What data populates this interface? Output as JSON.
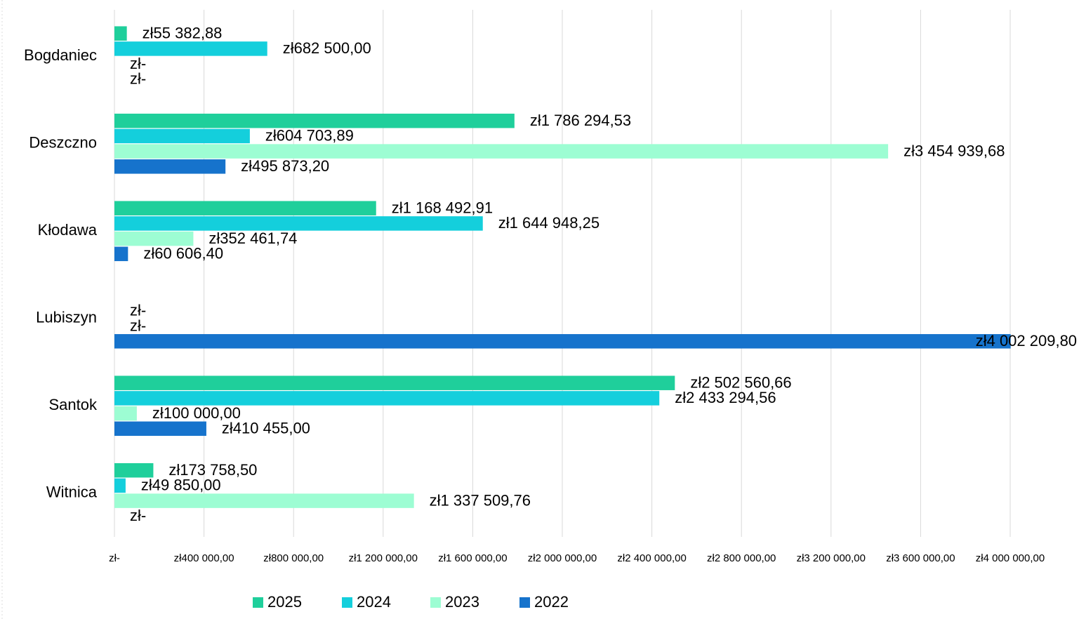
{
  "chart_data": {
    "type": "bar",
    "orientation": "horizontal",
    "categories": [
      "Bogdaniec",
      "Deszczno",
      "Kłodawa",
      "Lubiszyn",
      "Santok",
      "Witnica"
    ],
    "series": [
      {
        "name": "2025",
        "color": "#1fcf9b",
        "values": [
          55382.88,
          1786294.53,
          1168492.91,
          null,
          2502560.66,
          173758.5
        ],
        "value_labels": [
          "zł55 382,88",
          "zł1 786 294,53",
          "zł1 168 492,91",
          null,
          "zł2 502 560,66",
          "zł173 758,50"
        ]
      },
      {
        "name": "2024",
        "color": "#14cfdc",
        "values": [
          682500.0,
          604703.89,
          1644948.25,
          0,
          2433294.56,
          49850.0
        ],
        "value_labels": [
          "zł682 500,00",
          "zł604 703,89",
          "zł1 644 948,25",
          "zł-",
          "zł2 433 294,56",
          "zł49 850,00"
        ]
      },
      {
        "name": "2023",
        "color": "#9dfdd3",
        "values": [
          0,
          3454939.68,
          352461.74,
          0,
          100000.0,
          1337509.76
        ],
        "value_labels": [
          "zł-",
          "zł3 454 939,68",
          "zł352 461,74",
          "zł-",
          "zł100 000,00",
          "zł1 337 509,76"
        ]
      },
      {
        "name": "2022",
        "color": "#1673cc",
        "values": [
          0,
          495873.2,
          60606.4,
          4002209.8,
          410455.0,
          0
        ],
        "value_labels": [
          "zł-",
          "zł495 873,20",
          "zł60 606,40",
          "zł4 002 209,80",
          "zł410 455,00",
          "zł-"
        ]
      }
    ],
    "xlim": [
      0,
      4000000
    ],
    "xticks": [
      {
        "value": 0,
        "label": "zł-"
      },
      {
        "value": 400000,
        "label": "zł400 000,00"
      },
      {
        "value": 800000,
        "label": "zł800 000,00"
      },
      {
        "value": 1200000,
        "label": "zł1 200 000,00"
      },
      {
        "value": 1600000,
        "label": "zł1 600 000,00"
      },
      {
        "value": 2000000,
        "label": "zł2 000 000,00"
      },
      {
        "value": 2400000,
        "label": "zł2 400 000,00"
      },
      {
        "value": 2800000,
        "label": "zł2 800 000,00"
      },
      {
        "value": 3200000,
        "label": "zł3 200 000,00"
      },
      {
        "value": 3600000,
        "label": "zł3 600 000,00"
      },
      {
        "value": 4000000,
        "label": "zł4 000 000,00"
      }
    ],
    "grid": true,
    "legend": "bottom"
  }
}
